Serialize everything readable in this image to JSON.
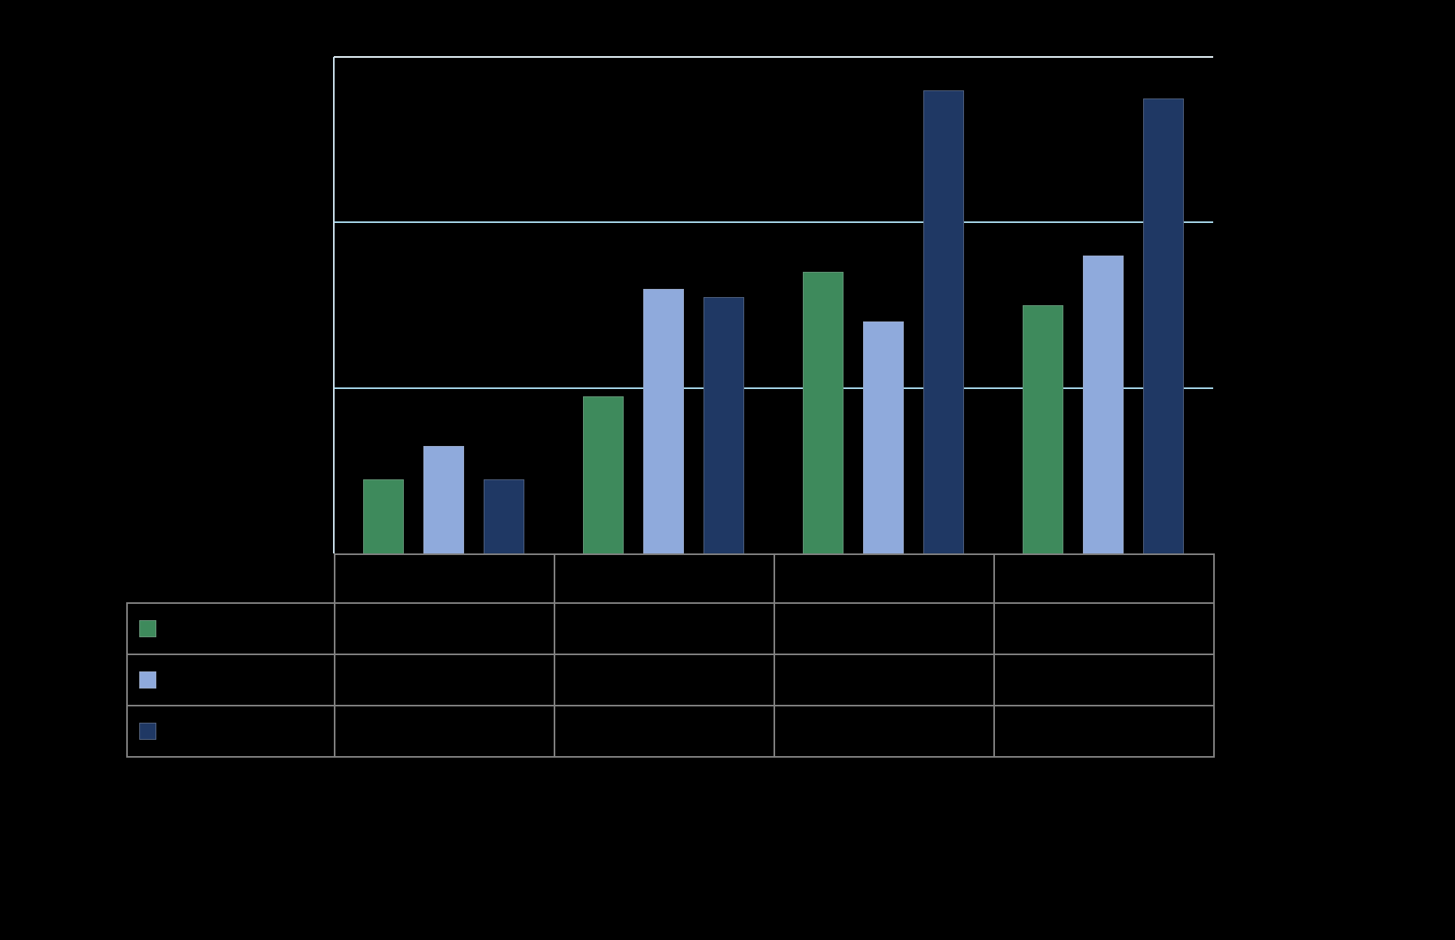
{
  "background_color": "#000000",
  "chart_data": {
    "type": "bar",
    "title": "",
    "xlabel": "",
    "ylabel": "",
    "categories": [
      "",
      "",
      "",
      ""
    ],
    "series": [
      {
        "name": "",
        "color": "#3E8A5C",
        "values": [
          0.45,
          0.95,
          1.7,
          1.5
        ]
      },
      {
        "name": "",
        "color": "#8FAADC",
        "values": [
          0.65,
          1.6,
          1.4,
          1.8
        ]
      },
      {
        "name": "",
        "color": "#1F3864",
        "values": [
          0.45,
          1.55,
          2.8,
          2.75
        ]
      }
    ],
    "ylim": [
      0,
      3
    ],
    "gridline_values": [
      1,
      2,
      3
    ],
    "grid_on": true,
    "gridline_color": "#A5D5E8",
    "top_line_color": "#E4F2F8",
    "axis_color": "#C9DEEA",
    "legend_position": "table-left",
    "data_table": {
      "border_color": "#7F7F7F",
      "header_cells": [
        "",
        "",
        "",
        ""
      ],
      "rows": [
        {
          "swatch_color": "#3E8A5C",
          "cells": [
            "",
            "",
            "",
            ""
          ]
        },
        {
          "swatch_color": "#8FAADC",
          "cells": [
            "",
            "",
            "",
            ""
          ]
        },
        {
          "swatch_color": "#1F3864",
          "cells": [
            "",
            "",
            "",
            ""
          ]
        }
      ]
    }
  }
}
